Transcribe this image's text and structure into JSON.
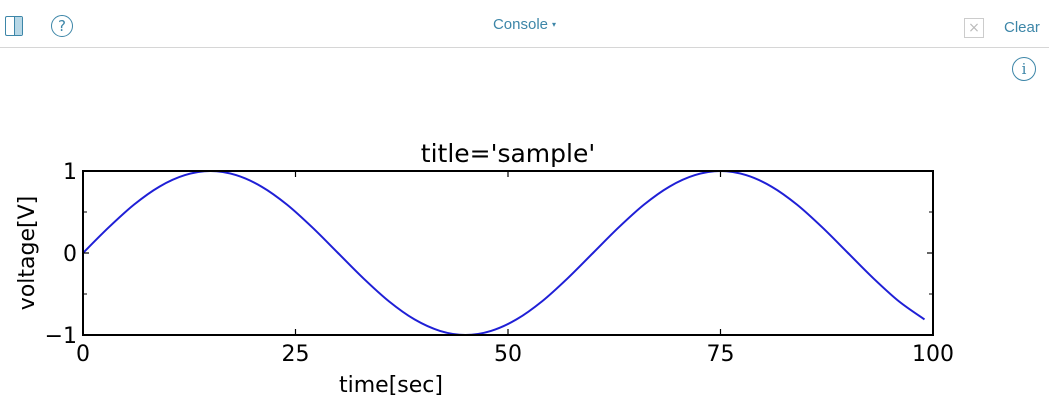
{
  "toolbar": {
    "sidebar_icon": "sidebar-toggle-icon",
    "help_icon": "question-circle-icon",
    "help_glyph": "?",
    "title": "Console",
    "title_caret": "▾",
    "clear_icon": "close-box-icon",
    "clear_glyph": "×",
    "clear_label": "Clear",
    "info_icon": "info-circle-icon",
    "info_glyph": "i",
    "accent": "#3d86a8"
  },
  "chart_data": {
    "type": "line",
    "title": "title='sample'",
    "xlabel": "time[sec]",
    "ylabel": "voltage[V]",
    "xlim": [
      0,
      100
    ],
    "ylim": [
      -1,
      1
    ],
    "xticks": [
      0,
      25,
      50,
      75,
      100
    ],
    "xtick_labels": [
      "0",
      "25",
      "50",
      "75",
      "100"
    ],
    "yticks": [
      -1,
      0,
      1
    ],
    "ytick_labels": [
      "−1",
      "0",
      "1"
    ],
    "yminor_ticks": [
      -0.5,
      0.5
    ],
    "grid": false,
    "color": "#1f1fd6",
    "series": [
      {
        "x": [
          0,
          3,
          6,
          9,
          12,
          15,
          18,
          21,
          24,
          27,
          30,
          33,
          36,
          39,
          42,
          45,
          48,
          51,
          54,
          57,
          60,
          63,
          66,
          69,
          72,
          75,
          78,
          81,
          84,
          87,
          90,
          93,
          96,
          99
        ],
        "y": [
          0,
          0.31,
          0.59,
          0.81,
          0.95,
          1,
          0.95,
          0.81,
          0.59,
          0.31,
          0,
          -0.31,
          -0.59,
          -0.81,
          -0.95,
          -1,
          -0.95,
          -0.81,
          -0.59,
          -0.31,
          0,
          0.31,
          0.59,
          0.81,
          0.95,
          1,
          0.95,
          0.81,
          0.59,
          0.31,
          0,
          -0.31,
          -0.59,
          -0.81
        ]
      }
    ]
  }
}
